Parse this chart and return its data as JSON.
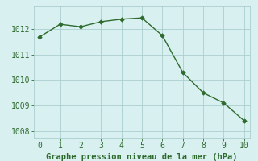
{
  "x": [
    0,
    1,
    2,
    3,
    4,
    5,
    6,
    7,
    8,
    9,
    10
  ],
  "y": [
    1011.7,
    1012.2,
    1012.1,
    1012.3,
    1012.4,
    1012.45,
    1011.75,
    1010.3,
    1009.5,
    1009.1,
    1008.4
  ],
  "xlim": [
    -0.3,
    10.3
  ],
  "ylim": [
    1007.7,
    1012.9
  ],
  "yticks": [
    1008,
    1009,
    1010,
    1011,
    1012
  ],
  "xticks": [
    0,
    1,
    2,
    3,
    4,
    5,
    6,
    7,
    8,
    9,
    10
  ],
  "line_color": "#2d6a2d",
  "marker": "D",
  "marker_size": 2.8,
  "line_width": 1.0,
  "background_color": "#d9f0f0",
  "grid_color": "#aacece",
  "xlabel": "Graphe pression niveau de la mer (hPa)",
  "xlabel_color": "#2d6a2d",
  "xlabel_fontsize": 7.5,
  "tick_fontsize": 7,
  "tick_color": "#2d6a2d"
}
